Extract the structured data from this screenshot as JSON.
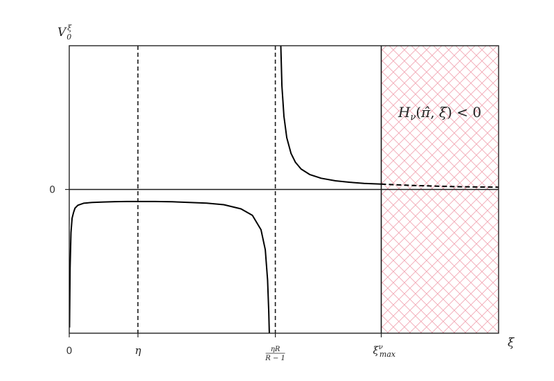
{
  "chart_data": {
    "type": "line",
    "title": "",
    "ylabel": "V_0^ξ",
    "xlabel": "ξ",
    "grid": false,
    "xlim": [
      0,
      1.5
    ],
    "ylim": [
      -1,
      1
    ],
    "y_ticks": [
      {
        "value": 0,
        "label": "0"
      }
    ],
    "x_ticks": [
      {
        "value": 0,
        "label": "0"
      },
      {
        "value": 0.24,
        "label": "η"
      },
      {
        "value": 0.72,
        "label": "ηR/(R−1)"
      },
      {
        "value": 1.09,
        "label": "ξ^ν_max"
      }
    ],
    "reference_lines": [
      {
        "orientation": "horizontal",
        "value": 0,
        "style": "solid"
      },
      {
        "orientation": "vertical",
        "value": 0.24,
        "style": "dashed"
      },
      {
        "orientation": "vertical",
        "value": 0.72,
        "style": "dashed"
      },
      {
        "orientation": "vertical",
        "value": 1.09,
        "style": "solid"
      }
    ],
    "series": [
      {
        "style": "solid",
        "color": "#000000",
        "x": [
          0.001,
          0.003,
          0.006,
          0.01,
          0.015,
          0.02,
          0.03,
          0.05,
          0.08,
          0.12,
          0.16,
          0.2,
          0.24,
          0.3,
          0.36,
          0.42,
          0.48,
          0.54,
          0.6,
          0.64,
          0.67,
          0.685,
          0.693,
          0.697,
          0.699
        ],
        "y": [
          -0.96,
          -0.55,
          -0.3,
          -0.2,
          -0.16,
          -0.13,
          -0.11,
          -0.096,
          -0.09,
          -0.087,
          -0.085,
          -0.084,
          -0.084,
          -0.084,
          -0.086,
          -0.09,
          -0.095,
          -0.106,
          -0.135,
          -0.18,
          -0.28,
          -0.42,
          -0.63,
          -0.85,
          -0.998
        ]
      },
      {
        "style": "solid",
        "color": "#000000",
        "x": [
          0.739,
          0.743,
          0.75,
          0.76,
          0.775,
          0.79,
          0.81,
          0.84,
          0.88,
          0.93,
          0.98,
          1.03,
          1.09
        ],
        "y": [
          1.0,
          0.72,
          0.51,
          0.36,
          0.25,
          0.19,
          0.142,
          0.104,
          0.078,
          0.06,
          0.05,
          0.042,
          0.037
        ]
      },
      {
        "style": "dashed",
        "color": "#000000",
        "x": [
          1.09,
          1.15,
          1.2,
          1.25,
          1.3,
          1.35,
          1.4,
          1.45,
          1.5
        ],
        "y": [
          0.037,
          0.032,
          0.028,
          0.025,
          0.022,
          0.02,
          0.018,
          0.017,
          0.016
        ]
      }
    ],
    "shaded_region": {
      "x_range": [
        1.09,
        1.5
      ],
      "pattern": "crosshatch",
      "color": "#f2a7b4",
      "annotation": "H_ν(π̂, ξ) < 0"
    }
  }
}
